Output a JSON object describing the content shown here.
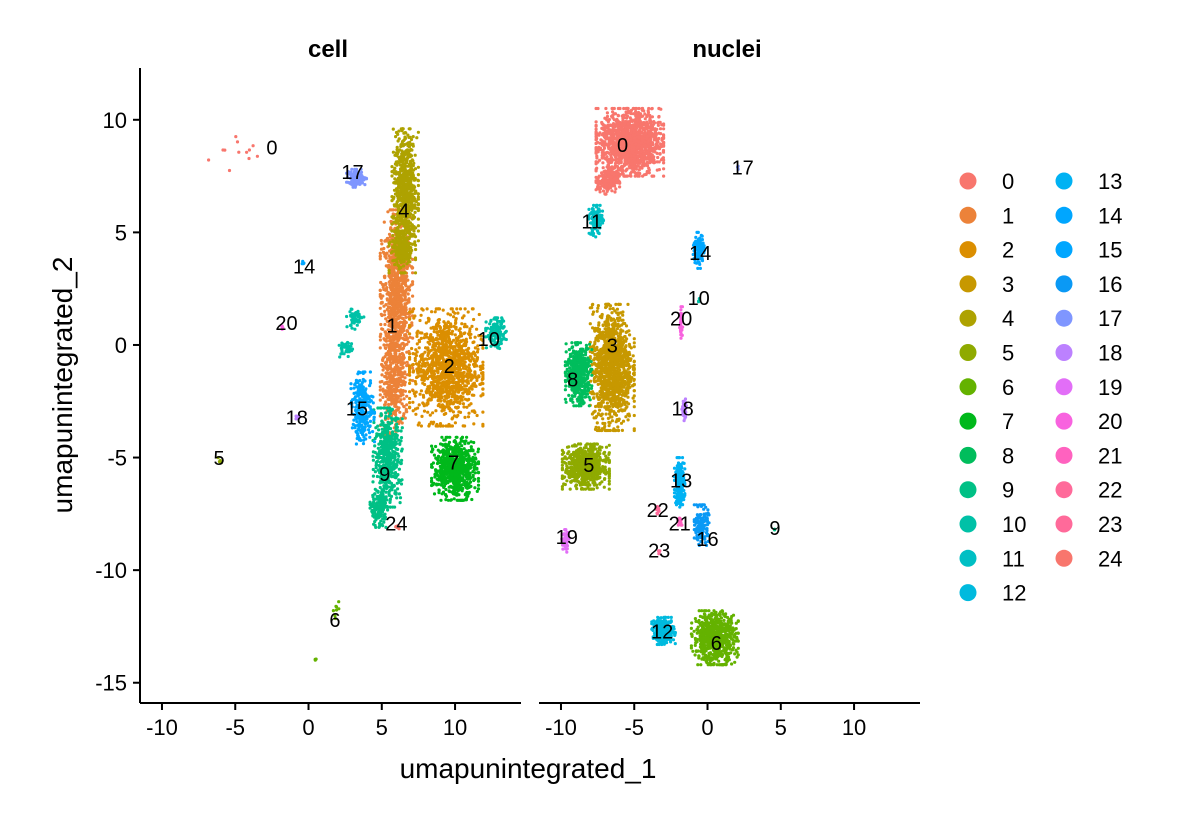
{
  "chart_data": {
    "type": "scatter",
    "xlabel": "umapunintegrated_1",
    "ylabel": "umapunintegrated_2",
    "xlim": [
      -11.5,
      14.5
    ],
    "ylim": [
      -15.9,
      12.3
    ],
    "xticks": [
      -10,
      -5,
      0,
      5,
      10
    ],
    "yticks": [
      -15,
      -10,
      -5,
      0,
      5,
      10
    ],
    "xtick_labels": [
      "-10",
      "-5",
      "0",
      "5",
      "10"
    ],
    "ytick_labels": [
      "-15",
      "-10",
      "-5",
      "0",
      "5",
      "10"
    ],
    "grid": false,
    "legend_position": "right",
    "legend": {
      "entries": [
        "0",
        "1",
        "2",
        "3",
        "4",
        "5",
        "6",
        "7",
        "8",
        "9",
        "10",
        "11",
        "12",
        "13",
        "14",
        "15",
        "16",
        "17",
        "18",
        "19",
        "20",
        "21",
        "22",
        "23",
        "24"
      ],
      "colors": [
        "#F8766D",
        "#EC8239",
        "#DB8E00",
        "#C79800",
        "#AEA200",
        "#8FAA00",
        "#64B200",
        "#00B81B",
        "#00BD5C",
        "#00C085",
        "#00C1A7",
        "#00BFC4",
        "#00BADE",
        "#00B2F3",
        "#00A6FF",
        "#00A6FF",
        "#0A99F5",
        "#7F96FF",
        "#BC81FF",
        "#E26EF7",
        "#F863DF",
        "#FF62BF",
        "#FF6A9A",
        "#FF6A9A",
        "#F8766D"
      ]
    },
    "panels": [
      {
        "title": "cell",
        "clusters": [
          {
            "label": "0",
            "color_index": 0,
            "label_x": -2.5,
            "label_y": 8.7,
            "blobs": [
              [
                -4.5,
                8.5,
                2.5,
                1.2,
                12
              ]
            ]
          },
          {
            "label": "1",
            "color_index": 1,
            "label_x": 5.7,
            "label_y": 0.8,
            "blobs": [
              [
                6,
                2,
                1.1,
                4,
                900
              ],
              [
                5.8,
                -2,
                0.9,
                2,
                300
              ]
            ]
          },
          {
            "label": "2",
            "color_index": 2,
            "label_x": 9.6,
            "label_y": -1.0,
            "blobs": [
              [
                9.4,
                -1,
                2.5,
                2.6,
                1200
              ]
            ]
          },
          {
            "label": "4",
            "color_index": 4,
            "label_x": 6.5,
            "label_y": 5.9,
            "blobs": [
              [
                6.6,
                6.8,
                0.9,
                2.8,
                700
              ],
              [
                6.4,
                4.2,
                0.9,
                1,
                200
              ]
            ]
          },
          {
            "label": "5",
            "color_index": 5,
            "label_x": -6.1,
            "label_y": -5.1,
            "blobs": [
              [
                -6.1,
                -5.1,
                0.15,
                0.2,
                6
              ]
            ]
          },
          {
            "label": "6",
            "color_index": 6,
            "label_x": 1.8,
            "label_y": -12.3,
            "blobs": [
              [
                2,
                -12,
                0.3,
                0.6,
                8
              ],
              [
                0.5,
                -14,
                0.1,
                0.3,
                3
              ]
            ]
          },
          {
            "label": "7",
            "color_index": 7,
            "label_x": 9.9,
            "label_y": -5.3,
            "blobs": [
              [
                10,
                -5.5,
                1.6,
                1.4,
                700
              ]
            ]
          },
          {
            "label": "9",
            "color_index": 9,
            "label_x": 5.2,
            "label_y": -5.8,
            "blobs": [
              [
                5.4,
                -5,
                1,
                2.2,
                500
              ],
              [
                4.8,
                -7.3,
                0.6,
                0.8,
                150
              ]
            ]
          },
          {
            "label": "10",
            "color_index": 10,
            "label_x": 12.3,
            "label_y": 0.2,
            "blobs": [
              [
                12.8,
                0.5,
                0.7,
                0.7,
                150
              ],
              [
                3.2,
                1.2,
                0.6,
                0.5,
                60
              ],
              [
                2.5,
                -0.2,
                0.5,
                0.4,
                40
              ]
            ]
          },
          {
            "label": "14",
            "color_index": 14,
            "label_x": -0.3,
            "label_y": 3.4,
            "blobs": [
              [
                -0.4,
                3.6,
                0.1,
                0.2,
                4
              ]
            ]
          },
          {
            "label": "15",
            "color_index": 15,
            "label_x": 3.3,
            "label_y": -2.9,
            "blobs": [
              [
                3.7,
                -2.8,
                0.8,
                1.6,
                250
              ]
            ]
          },
          {
            "label": "17",
            "color_index": 17,
            "label_x": 3.0,
            "label_y": 7.6,
            "blobs": [
              [
                3.3,
                7.4,
                0.7,
                0.4,
                120
              ]
            ]
          },
          {
            "label": "18",
            "color_index": 18,
            "label_x": -0.8,
            "label_y": -3.3,
            "blobs": [
              [
                -0.7,
                -3.2,
                0.2,
                0.1,
                8
              ]
            ]
          },
          {
            "label": "20",
            "color_index": 20,
            "label_x": -1.5,
            "label_y": 0.9,
            "blobs": [
              [
                -1.8,
                0.8,
                0.1,
                0.15,
                5
              ]
            ]
          },
          {
            "label": "24",
            "color_index": 24,
            "label_x": 6.0,
            "label_y": -8.0,
            "blobs": [
              [
                6,
                -8.1,
                0.2,
                0.1,
                6
              ]
            ]
          }
        ]
      },
      {
        "title": "nuclei",
        "clusters": [
          {
            "label": "0",
            "color_index": 0,
            "label_x": -5.8,
            "label_y": 8.8,
            "blobs": [
              [
                -5.3,
                9,
                2.3,
                1.5,
                1400
              ],
              [
                -6.8,
                7.3,
                0.8,
                0.6,
                200
              ]
            ]
          },
          {
            "label": "3",
            "color_index": 3,
            "label_x": -6.5,
            "label_y": -0.1,
            "blobs": [
              [
                -6.5,
                -1,
                1.5,
                2.8,
                1200
              ]
            ]
          },
          {
            "label": "5",
            "color_index": 5,
            "label_x": -8.1,
            "label_y": -5.4,
            "blobs": [
              [
                -8.3,
                -5.4,
                1.6,
                1,
                700
              ]
            ]
          },
          {
            "label": "6",
            "color_index": 6,
            "label_x": 0.6,
            "label_y": -13.3,
            "blobs": [
              [
                0.5,
                -13,
                1.6,
                1.2,
                700
              ]
            ]
          },
          {
            "label": "8",
            "color_index": 8,
            "label_x": -9.2,
            "label_y": -1.6,
            "blobs": [
              [
                -8.8,
                -1.3,
                0.9,
                1.4,
                500
              ]
            ]
          },
          {
            "label": "9",
            "color_index": 9,
            "label_x": 4.6,
            "label_y": -8.2,
            "blobs": [
              [
                4.6,
                -8.2,
                0.05,
                0.05,
                2
              ]
            ]
          },
          {
            "label": "10",
            "color_index": 10,
            "label_x": -0.6,
            "label_y": 2.0,
            "blobs": [
              [
                -0.6,
                2,
                0.1,
                0.1,
                4
              ]
            ]
          },
          {
            "label": "11",
            "color_index": 11,
            "label_x": -7.9,
            "label_y": 5.4,
            "blobs": [
              [
                -7.6,
                5.5,
                0.5,
                0.7,
                150
              ]
            ]
          },
          {
            "label": "12",
            "color_index": 12,
            "label_x": -3.1,
            "label_y": -12.8,
            "blobs": [
              [
                -3,
                -12.7,
                0.8,
                0.6,
                300
              ]
            ]
          },
          {
            "label": "13",
            "color_index": 13,
            "label_x": -1.8,
            "label_y": -6.1,
            "blobs": [
              [
                -1.9,
                -6.1,
                0.35,
                1.1,
                250
              ]
            ]
          },
          {
            "label": "14",
            "color_index": 14,
            "label_x": -0.5,
            "label_y": 4.0,
            "blobs": [
              [
                -0.6,
                4.2,
                0.4,
                0.8,
                120
              ]
            ]
          },
          {
            "label": "16",
            "color_index": 16,
            "label_x": 0.0,
            "label_y": -8.7,
            "blobs": [
              [
                -0.4,
                -8,
                0.5,
                0.9,
                150
              ]
            ]
          },
          {
            "label": "17",
            "color_index": 17,
            "label_x": 2.4,
            "label_y": 7.8,
            "blobs": [
              [
                2.1,
                7.9,
                0.05,
                0.1,
                3
              ]
            ]
          },
          {
            "label": "18",
            "color_index": 18,
            "label_x": -1.7,
            "label_y": -2.9,
            "blobs": [
              [
                -1.6,
                -2.9,
                0.15,
                0.5,
                60
              ]
            ]
          },
          {
            "label": "19",
            "color_index": 19,
            "label_x": -9.6,
            "label_y": -8.6,
            "blobs": [
              [
                -9.7,
                -8.7,
                0.25,
                0.5,
                70
              ]
            ]
          },
          {
            "label": "20",
            "color_index": 20,
            "label_x": -1.8,
            "label_y": 1.1,
            "blobs": [
              [
                -1.8,
                1,
                0.1,
                0.7,
                40
              ]
            ]
          },
          {
            "label": "21",
            "color_index": 21,
            "label_x": -1.9,
            "label_y": -8.0,
            "blobs": [
              [
                -1.9,
                -7.8,
                0.15,
                0.2,
                20
              ]
            ]
          },
          {
            "label": "22",
            "color_index": 22,
            "label_x": -3.4,
            "label_y": -7.4,
            "blobs": [
              [
                -3.4,
                -7.3,
                0.2,
                0.2,
                20
              ]
            ]
          },
          {
            "label": "23",
            "color_index": 23,
            "label_x": -3.3,
            "label_y": -9.2,
            "blobs": [
              [
                -3.3,
                -9.2,
                0.1,
                0.1,
                6
              ]
            ]
          }
        ]
      }
    ]
  }
}
